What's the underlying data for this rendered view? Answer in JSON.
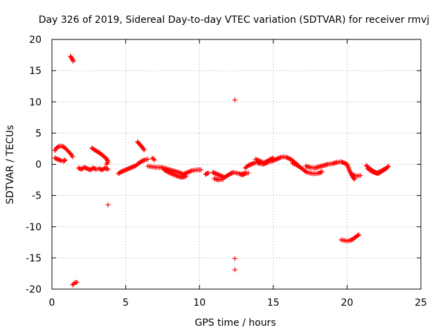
{
  "chart_data": {
    "type": "scatter",
    "title": "Day 326 of 2019, Sidereal Day-to-day VTEC variation (SDTVAR) for receiver rmvj",
    "xlabel": "GPS time / hours",
    "ylabel": "SDTVAR / TECUs",
    "xlim": [
      0,
      25
    ],
    "ylim": [
      -20,
      20
    ],
    "xticks": [
      0,
      5,
      10,
      15,
      20,
      25
    ],
    "yticks": [
      -20,
      -15,
      -10,
      -5,
      0,
      5,
      10,
      15,
      20
    ],
    "grid": true,
    "marker": "plus",
    "color": "#ff0000",
    "series": [
      {
        "name": "SDTVAR",
        "segments": [
          [
            [
              0.2,
              2.2
            ],
            [
              0.3,
              2.6
            ],
            [
              0.5,
              2.9
            ],
            [
              0.7,
              2.9
            ],
            [
              0.9,
              2.6
            ],
            [
              1.1,
              2.1
            ],
            [
              1.3,
              1.6
            ],
            [
              1.4,
              1.2
            ]
          ],
          [
            [
              0.2,
              1.0
            ],
            [
              0.4,
              0.8
            ],
            [
              0.6,
              0.6
            ],
            [
              0.8,
              0.5
            ],
            [
              0.9,
              0.7
            ]
          ],
          [
            [
              1.25,
              17.3
            ],
            [
              1.35,
              17.0
            ],
            [
              1.45,
              16.5
            ]
          ],
          [
            [
              1.4,
              -19.3
            ],
            [
              1.55,
              -19.0
            ],
            [
              1.7,
              -18.9
            ]
          ],
          [
            [
              1.8,
              -0.6
            ],
            [
              2.0,
              -0.8
            ],
            [
              2.2,
              -0.5
            ],
            [
              2.4,
              -0.7
            ],
            [
              2.6,
              -0.9
            ],
            [
              2.8,
              -0.6
            ],
            [
              3.0,
              -0.8
            ],
            [
              3.2,
              -0.7
            ],
            [
              3.4,
              -0.9
            ],
            [
              3.6,
              -0.6
            ],
            [
              3.8,
              -0.8
            ]
          ],
          [
            [
              2.7,
              2.6
            ],
            [
              2.9,
              2.3
            ],
            [
              3.1,
              2.0
            ],
            [
              3.3,
              1.7
            ],
            [
              3.5,
              1.3
            ],
            [
              3.7,
              0.9
            ],
            [
              3.8,
              0.4
            ],
            [
              3.7,
              0.0
            ]
          ],
          [
            [
              3.8,
              -6.5
            ]
          ],
          [
            [
              4.5,
              -1.5
            ],
            [
              4.7,
              -1.2
            ],
            [
              4.9,
              -1.0
            ],
            [
              5.1,
              -0.8
            ],
            [
              5.3,
              -0.6
            ],
            [
              5.5,
              -0.4
            ],
            [
              5.7,
              -0.2
            ],
            [
              5.9,
              0.2
            ],
            [
              6.1,
              0.5
            ],
            [
              6.3,
              0.7
            ],
            [
              6.5,
              0.8
            ]
          ],
          [
            [
              5.8,
              3.6
            ],
            [
              5.95,
              3.2
            ],
            [
              6.1,
              2.8
            ],
            [
              6.25,
              2.3
            ]
          ],
          [
            [
              6.8,
              1.0
            ],
            [
              6.95,
              0.7
            ]
          ],
          [
            [
              6.5,
              -0.3
            ],
            [
              6.8,
              -0.4
            ],
            [
              7.1,
              -0.5
            ],
            [
              7.4,
              -0.5
            ],
            [
              7.7,
              -0.7
            ],
            [
              8.0,
              -0.9
            ],
            [
              8.3,
              -1.1
            ],
            [
              8.6,
              -1.3
            ],
            [
              8.9,
              -1.6
            ],
            [
              9.2,
              -1.3
            ],
            [
              9.5,
              -1.0
            ],
            [
              9.8,
              -0.9
            ],
            [
              10.1,
              -0.9
            ]
          ],
          [
            [
              7.6,
              -0.9
            ],
            [
              7.9,
              -1.3
            ],
            [
              8.2,
              -1.6
            ],
            [
              8.5,
              -1.9
            ],
            [
              8.8,
              -2.1
            ],
            [
              9.1,
              -1.9
            ]
          ],
          [
            [
              10.4,
              -1.6
            ],
            [
              10.6,
              -1.4
            ]
          ],
          [
            [
              10.9,
              -1.3
            ],
            [
              11.1,
              -1.5
            ],
            [
              11.3,
              -1.7
            ],
            [
              11.5,
              -1.9
            ],
            [
              11.7,
              -2.1
            ],
            [
              11.9,
              -1.8
            ],
            [
              12.1,
              -1.5
            ],
            [
              12.3,
              -1.3
            ],
            [
              12.5,
              -1.4
            ],
            [
              12.7,
              -1.5
            ],
            [
              12.9,
              -1.7
            ],
            [
              13.1,
              -1.5
            ]
          ],
          [
            [
              11.0,
              -2.3
            ],
            [
              11.3,
              -2.5
            ],
            [
              11.6,
              -2.4
            ]
          ],
          [
            [
              12.4,
              10.3
            ]
          ],
          [
            [
              12.4,
              -15.1
            ]
          ],
          [
            [
              12.4,
              -16.9
            ]
          ],
          [
            [
              12.9,
              -1.5
            ],
            [
              13.3,
              -1.4
            ]
          ],
          [
            [
              13.1,
              -0.6
            ],
            [
              13.3,
              -0.2
            ],
            [
              13.5,
              0.0
            ],
            [
              13.7,
              0.2
            ],
            [
              13.9,
              0.3
            ],
            [
              14.1,
              0.1
            ],
            [
              14.3,
              0.0
            ],
            [
              14.5,
              0.2
            ],
            [
              14.7,
              0.4
            ],
            [
              14.9,
              0.5
            ],
            [
              15.1,
              0.7
            ],
            [
              15.3,
              0.9
            ],
            [
              15.5,
              1.1
            ],
            [
              15.7,
              1.2
            ],
            [
              15.9,
              1.1
            ],
            [
              16.1,
              0.9
            ],
            [
              16.3,
              0.6
            ],
            [
              16.5,
              0.2
            ],
            [
              16.7,
              -0.2
            ]
          ],
          [
            [
              13.8,
              0.8
            ],
            [
              14.0,
              0.6
            ],
            [
              14.2,
              0.4
            ],
            [
              14.4,
              0.3
            ],
            [
              14.6,
              0.5
            ],
            [
              14.8,
              0.8
            ],
            [
              15.0,
              1.0
            ]
          ],
          [
            [
              16.3,
              0.2
            ],
            [
              16.5,
              0.0
            ],
            [
              16.7,
              -0.3
            ],
            [
              16.9,
              -0.6
            ],
            [
              17.1,
              -1.0
            ],
            [
              17.3,
              -1.3
            ],
            [
              17.5,
              -1.4
            ],
            [
              17.7,
              -1.5
            ],
            [
              17.9,
              -1.5
            ],
            [
              18.1,
              -1.4
            ],
            [
              18.3,
              -1.2
            ]
          ],
          [
            [
              17.2,
              -0.3
            ],
            [
              17.5,
              -0.5
            ],
            [
              17.8,
              -0.6
            ],
            [
              18.1,
              -0.4
            ],
            [
              18.4,
              -0.2
            ],
            [
              18.7,
              0.0
            ],
            [
              19.0,
              0.1
            ],
            [
              19.3,
              0.3
            ],
            [
              19.6,
              0.4
            ],
            [
              19.8,
              0.2
            ],
            [
              20.0,
              0.0
            ],
            [
              20.1,
              -0.6
            ],
            [
              20.2,
              -1.2
            ],
            [
              20.3,
              -1.6
            ],
            [
              20.4,
              -2.1
            ],
            [
              20.5,
              -2.4
            ]
          ],
          [
            [
              20.3,
              -1.6
            ],
            [
              20.5,
              -1.8
            ],
            [
              20.7,
              -1.9
            ],
            [
              20.9,
              -1.8
            ]
          ],
          [
            [
              19.6,
              -12.1
            ],
            [
              19.8,
              -12.2
            ],
            [
              20.0,
              -12.3
            ],
            [
              20.2,
              -12.2
            ],
            [
              20.4,
              -12.0
            ],
            [
              20.6,
              -11.6
            ],
            [
              20.8,
              -11.3
            ]
          ],
          [
            [
              21.3,
              -0.2
            ],
            [
              21.5,
              -0.6
            ],
            [
              21.7,
              -1.0
            ],
            [
              21.9,
              -1.3
            ],
            [
              22.1,
              -1.5
            ],
            [
              22.3,
              -1.2
            ],
            [
              22.5,
              -0.9
            ],
            [
              22.7,
              -0.6
            ],
            [
              22.8,
              -0.3
            ]
          ],
          [
            [
              21.4,
              -0.7
            ],
            [
              21.7,
              -1.2
            ],
            [
              22.0,
              -1.4
            ],
            [
              22.3,
              -1.1
            ],
            [
              22.6,
              -0.7
            ]
          ]
        ]
      }
    ]
  }
}
